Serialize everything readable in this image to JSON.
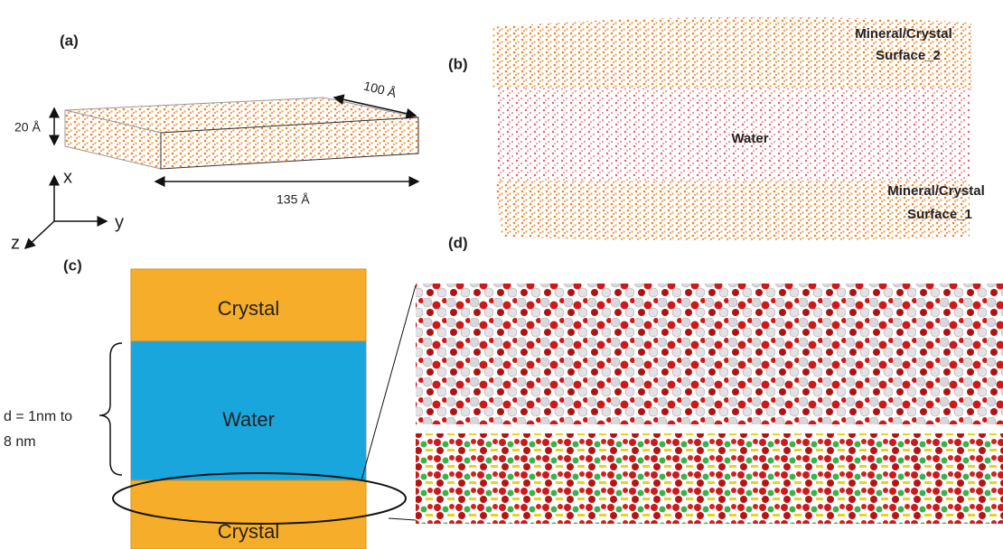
{
  "panel_a": {
    "label": "(a)",
    "height": "20 Å",
    "depth": "100 Å",
    "width": "135 Å",
    "axes": {
      "x": "x",
      "y": "y",
      "z": "z"
    }
  },
  "panel_b": {
    "label": "(b)",
    "top_surface": {
      "line1": "Mineral/Crystal",
      "line2": "Surface_2"
    },
    "middle": "Water",
    "bottom_surface": {
      "line1": "Mineral/Crystal",
      "line2": "Surface_1"
    }
  },
  "panel_c": {
    "label": "(c)",
    "layers": [
      "Crystal",
      "Water",
      "Crystal"
    ],
    "thickness": {
      "line1": "d = 1nm to",
      "line2": "8 nm"
    }
  },
  "panel_d": {
    "label": "(d)"
  }
}
